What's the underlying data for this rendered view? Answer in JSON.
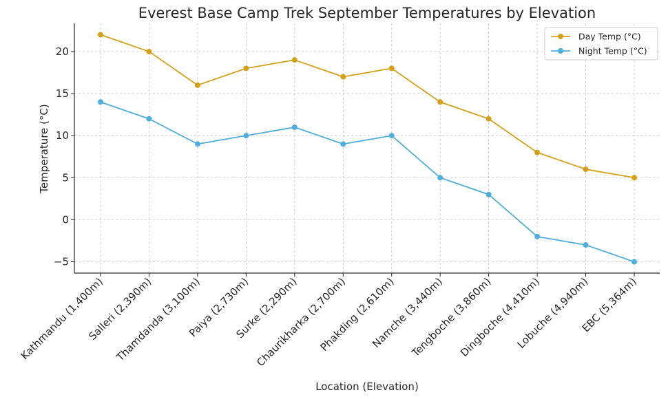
{
  "chart_data": {
    "type": "line",
    "title": "Everest Base Camp Trek September Temperatures by Elevation",
    "xlabel": "Location (Elevation)",
    "ylabel": "Temperature (°C)",
    "categories": [
      "Kathmandu (1,400m)",
      "Salleri (2,390m)",
      "Thamdanda (3,100m)",
      "Paiya (2,730m)",
      "Surke (2,290m)",
      "Chaurikharka (2,700m)",
      "Phakding (2,610m)",
      "Namche (3,440m)",
      "Tengboche (3,860m)",
      "Dingboche (4,410m)",
      "Lobuche (4,940m)",
      "EBC (5,364m)"
    ],
    "series": [
      {
        "name": "Day Temp (°C)",
        "color": "#d4a017",
        "values": [
          22,
          20,
          16,
          18,
          19,
          17,
          18,
          14,
          12,
          8,
          6,
          5
        ]
      },
      {
        "name": "Night Temp (°C)",
        "color": "#4faedb",
        "values": [
          14,
          12,
          9,
          10,
          11,
          9,
          10,
          5,
          3,
          -2,
          -3,
          -5
        ]
      }
    ],
    "yticks": [
      -5,
      0,
      5,
      10,
      15,
      20
    ],
    "ytick_labels": [
      "−5",
      "0",
      "5",
      "10",
      "15",
      "20"
    ],
    "ylim": [
      -6.35,
      23.35
    ],
    "grid": true,
    "legend_position": "top-right"
  }
}
